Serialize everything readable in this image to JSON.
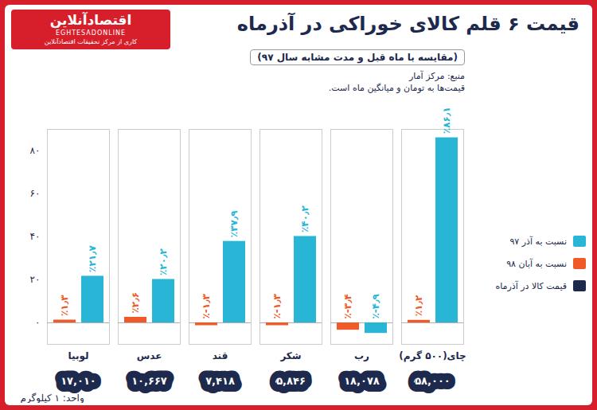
{
  "chart_data": {
    "type": "bar",
    "title": "قیمت ۶ قلم کالای خوراکی در آذرماه",
    "subtitle": "(مقایسه با ماه قبل و مدت مشابه سال ۹۷)",
    "notes": [
      "منبع: مرکز آمار",
      "قیمت‌ها به تومان و میانگین ماه است."
    ],
    "logo": {
      "name": "اقتصادآنلاین",
      "latin": "EGHTESADONLINE",
      "tagline": "کاری از مرکز تحقیقات اقتصادآنلاین"
    },
    "categories": [
      "لوبیا",
      "عدس",
      "قند",
      "شکر",
      "رب",
      "چای(۵۰۰ گرم)"
    ],
    "series": [
      {
        "name": "نسبت به آذر ۹۷",
        "color": "#29b5d6",
        "values": [
          21.7,
          20.2,
          37.9,
          40.2,
          -4.9,
          86.1
        ],
        "value_labels": [
          "٪۲۱٫۷",
          "٪۲۰٫۲",
          "٪۳۷٫۹",
          "٪۴۰٫۲",
          "٪-۴٫۹",
          "٪۸۶٫۱"
        ]
      },
      {
        "name": "نسبت به آبان ۹۸",
        "color": "#f05a28",
        "values": [
          1.3,
          2.6,
          -1.3,
          -1.3,
          -3.4,
          1.2
        ],
        "value_labels": [
          "٪۱٫۳",
          "٪۲٫۶",
          "٪-۱٫۳",
          "٪-۱٫۳",
          "٪-۳٫۴",
          "٪۱٫۲"
        ]
      }
    ],
    "prices": {
      "name": "قیمت کالا در آذرماه",
      "color": "#1d2a4d",
      "values": [
        17010,
        10667,
        7418,
        5846,
        18078,
        58000
      ],
      "value_labels": [
        "۱۷,۰۱۰",
        "۱۰,۶۶۷",
        "۷,۴۱۸",
        "۵,۸۴۶",
        "۱۸,۰۷۸",
        "۵۸,۰۰۰"
      ]
    },
    "ylabel": "واحد: ۱ کیلوگرم",
    "ylim": [
      -10,
      90
    ],
    "yticks": [
      {
        "value": 0,
        "label": "۰"
      },
      {
        "value": 20,
        "label": "۲۰"
      },
      {
        "value": 40,
        "label": "۴۰"
      },
      {
        "value": 60,
        "label": "۶۰"
      },
      {
        "value": 80,
        "label": "۸۰"
      }
    ],
    "grid": false,
    "data_labels": true,
    "legend": "right"
  }
}
